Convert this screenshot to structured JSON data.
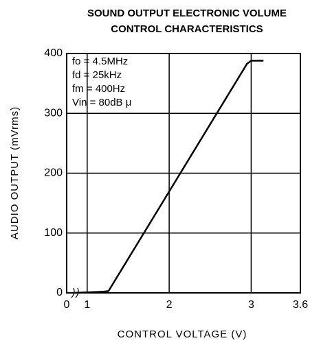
{
  "chart_data": {
    "type": "line",
    "title": [
      "SOUND OUTPUT ELECTRONIC VOLUME",
      "CONTROL CHARACTERISTICS"
    ],
    "x_label": "CONTROL VOLTAGE (V)",
    "y_label": "AUDIO OUTPUT (mVrms)",
    "annotations": [
      "fo = 4.5MHz",
      "fd = 25kHz",
      "fm = 400Hz",
      "Vin = 80dB μ"
    ],
    "x": [
      0.84,
      1.2,
      1.26,
      2.95,
      3.0,
      3.15
    ],
    "series": [
      {
        "color": "#000000",
        "values": [
          0,
          2,
          3,
          383,
          388,
          388
        ]
      }
    ],
    "xlim": [
      0.75,
      3.6
    ],
    "xticks": [
      0,
      1,
      2,
      3,
      3.6
    ],
    "x_axis_break": true,
    "ylim": [
      0,
      400
    ],
    "yticks": [
      0,
      100,
      200,
      300,
      400
    ],
    "grid": true
  }
}
